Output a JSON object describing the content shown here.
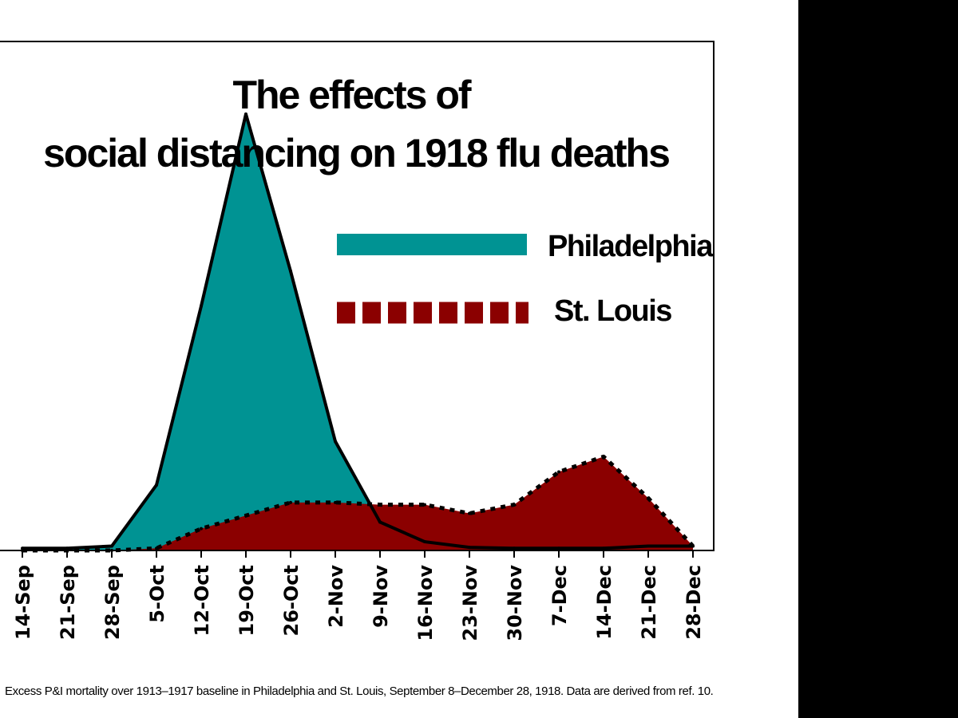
{
  "chart_data": {
    "type": "area",
    "title_lines": [
      "The effects of",
      "social distancing on 1918 flu deaths"
    ],
    "categories": [
      "14-Sep",
      "21-Sep",
      "28-Sep",
      "5-Oct",
      "12-Oct",
      "19-Oct",
      "26-Oct",
      "2-Nov",
      "9-Nov",
      "16-Nov",
      "23-Nov",
      "30-Nov",
      "7-Dec",
      "14-Dec",
      "21-Dec",
      "28-Dec"
    ],
    "ylim": [
      0,
      100
    ],
    "xlabel": "",
    "ylabel": "",
    "grid": false,
    "legend_position": "upper-right",
    "series": [
      {
        "name": "Philadelphia",
        "color": "#009393",
        "line_style": "solid",
        "values": [
          0.5,
          0.5,
          1,
          15,
          56,
          100,
          64,
          25,
          6.5,
          2,
          0.7,
          0.5,
          0.5,
          0.5,
          1,
          1
        ]
      },
      {
        "name": "St. Louis",
        "color": "#8b0000",
        "line_style": "dotted",
        "values": [
          0,
          0,
          0,
          0.5,
          5,
          8,
          11,
          11,
          10.5,
          10.5,
          8.5,
          10.5,
          18,
          21.5,
          12,
          1
        ]
      }
    ]
  },
  "caption": "Excess P&I mortality over 1913–1917 baseline in Philadelphia and St. Louis, September 8–December 28, 1918. Data are derived from ref. 10."
}
